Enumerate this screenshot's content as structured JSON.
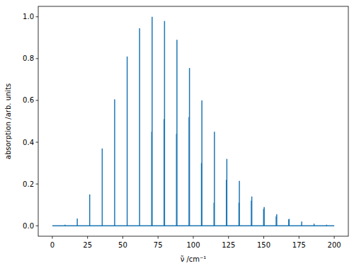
{
  "chart_data": {
    "type": "stem",
    "x_label": "ν̃ /cm⁻¹",
    "y_label": "absorption /arb. units",
    "color": "#1f77b4",
    "x": [
      0,
      9.0,
      17.7,
      26.5,
      35.4,
      44.2,
      53.1,
      61.9,
      70.5,
      70.8,
      79.3,
      79.6,
      88.1,
      88.4,
      97.0,
      97.3,
      105.8,
      106.1,
      114.7,
      115.0,
      123.5,
      123.8,
      132.4,
      132.7,
      141.2,
      141.5,
      149.9,
      150.3,
      158.8,
      159.2,
      167.7,
      168.0,
      176.9,
      185.7,
      194.6,
      200
    ],
    "values": [
      0,
      0.005,
      0.035,
      0.15,
      0.37,
      0.605,
      0.81,
      0.945,
      0.45,
      1.0,
      0.51,
      0.98,
      0.44,
      0.89,
      0.52,
      0.755,
      0.3,
      0.6,
      0.11,
      0.45,
      0.22,
      0.32,
      0.11,
      0.215,
      0.12,
      0.14,
      0.08,
      0.09,
      0.045,
      0.055,
      0.03,
      0.033,
      0.02,
      0.01,
      0.005,
      0
    ],
    "xlim": [
      -10,
      210
    ],
    "ylim": [
      -0.05,
      1.05
    ],
    "xticks": [
      0,
      25,
      50,
      75,
      100,
      125,
      150,
      175,
      200
    ],
    "yticks": [
      {
        "value": 0,
        "label": "0.0"
      },
      0.2,
      0.4,
      0.6,
      0.8,
      {
        "value": 1,
        "label": "1.0"
      }
    ],
    "grid": false
  }
}
